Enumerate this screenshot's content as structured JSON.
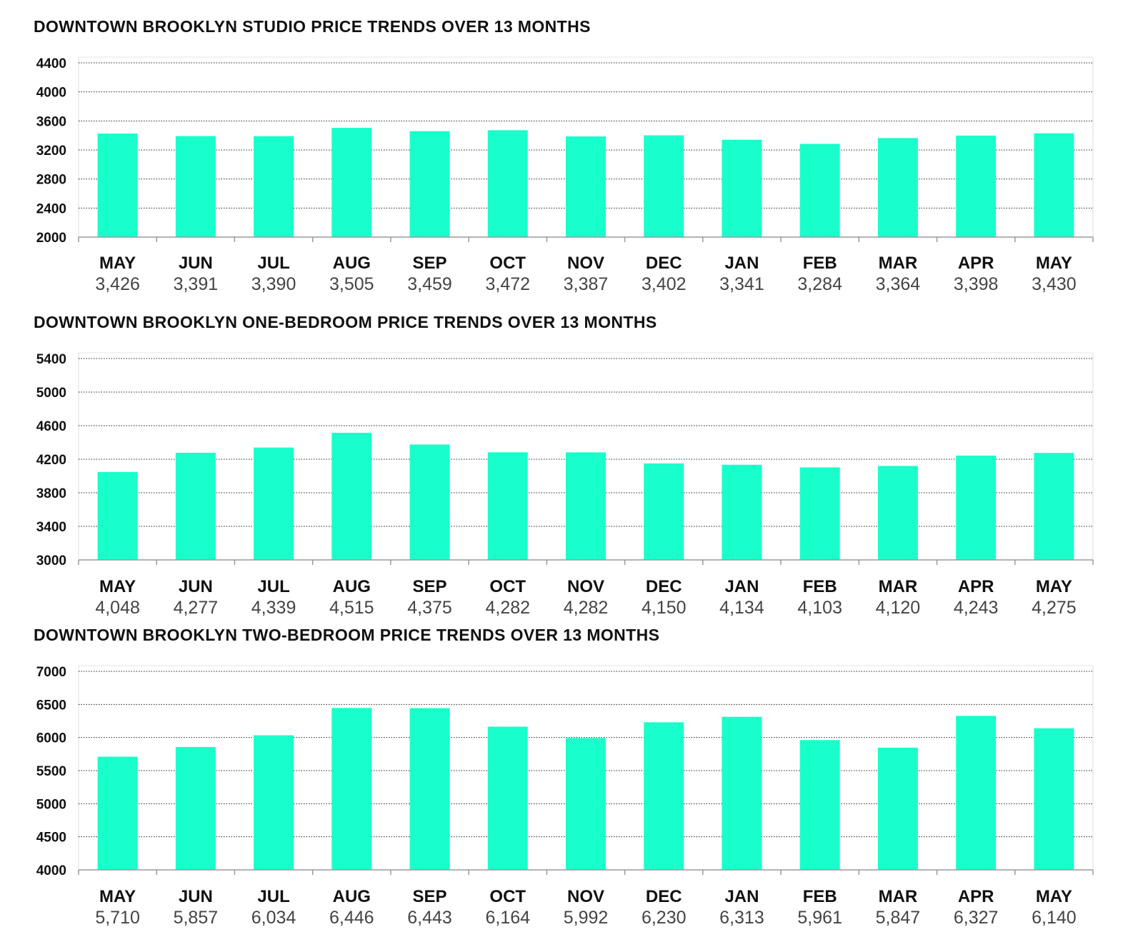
{
  "accent_color": "#19FFCB",
  "chart_data": [
    {
      "type": "bar",
      "title": "DOWNTOWN BROOKLYN STUDIO PRICE TRENDS OVER 13 MONTHS",
      "categories": [
        "MAY",
        "JUN",
        "JUL",
        "AUG",
        "SEP",
        "OCT",
        "NOV",
        "DEC",
        "JAN",
        "FEB",
        "MAR",
        "APR",
        "MAY"
      ],
      "values": [
        3426,
        3391,
        3390,
        3505,
        3459,
        3472,
        3387,
        3402,
        3341,
        3284,
        3364,
        3398,
        3430
      ],
      "value_labels": [
        "3,426",
        "3,391",
        "3,390",
        "3,505",
        "3,459",
        "3,472",
        "3,387",
        "3,402",
        "3,341",
        "3,284",
        "3,364",
        "3,398",
        "3,430"
      ],
      "ylim": [
        2000,
        4400
      ],
      "yticks": [
        2000,
        2400,
        2800,
        3200,
        3600,
        4000,
        4400
      ],
      "grid": true,
      "xlabel": "",
      "ylabel": ""
    },
    {
      "type": "bar",
      "title": "DOWNTOWN BROOKLYN ONE-BEDROOM PRICE TRENDS OVER 13 MONTHS",
      "categories": [
        "MAY",
        "JUN",
        "JUL",
        "AUG",
        "SEP",
        "OCT",
        "NOV",
        "DEC",
        "JAN",
        "FEB",
        "MAR",
        "APR",
        "MAY"
      ],
      "values": [
        4048,
        4277,
        4339,
        4515,
        4375,
        4282,
        4282,
        4150,
        4134,
        4103,
        4120,
        4243,
        4275
      ],
      "value_labels": [
        "4,048",
        "4,277",
        "4,339",
        "4,515",
        "4,375",
        "4,282",
        "4,282",
        "4,150",
        "4,134",
        "4,103",
        "4,120",
        "4,243",
        "4,275"
      ],
      "ylim": [
        3000,
        5400
      ],
      "yticks": [
        3000,
        3400,
        3800,
        4200,
        4600,
        5000,
        5400
      ],
      "grid": true,
      "xlabel": "",
      "ylabel": ""
    },
    {
      "type": "bar",
      "title": "DOWNTOWN BROOKLYN TWO-BEDROOM PRICE TRENDS OVER 13 MONTHS",
      "categories": [
        "MAY",
        "JUN",
        "JUL",
        "AUG",
        "SEP",
        "OCT",
        "NOV",
        "DEC",
        "JAN",
        "FEB",
        "MAR",
        "APR",
        "MAY"
      ],
      "values": [
        5710,
        5857,
        6034,
        6446,
        6443,
        6164,
        5992,
        6230,
        6313,
        5961,
        5847,
        6327,
        6140
      ],
      "value_labels": [
        "5,710",
        "5,857",
        "6,034",
        "6,446",
        "6,443",
        "6,164",
        "5,992",
        "6,230",
        "6,313",
        "5,961",
        "5,847",
        "6,327",
        "6,140"
      ],
      "ylim": [
        4000,
        7000
      ],
      "yticks": [
        4000,
        4500,
        5000,
        5500,
        6000,
        6500,
        7000
      ],
      "grid": true,
      "xlabel": "",
      "ylabel": ""
    }
  ]
}
